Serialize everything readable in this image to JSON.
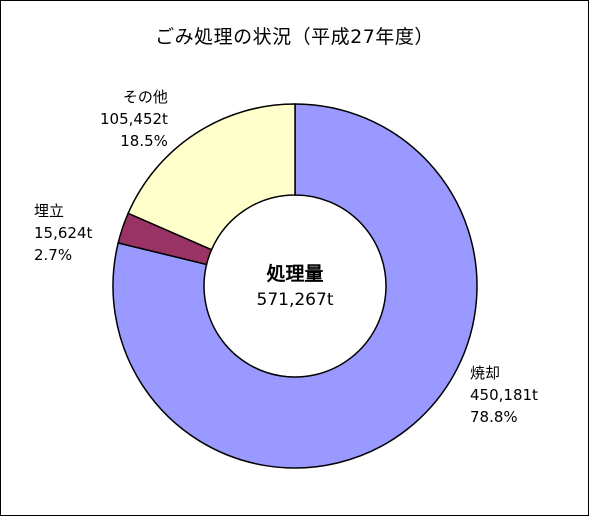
{
  "chart_data": {
    "type": "pie",
    "donut": true,
    "title": "ごみ処理の状況（平成27年度）",
    "center_label": "処理量",
    "center_value": "571,267t",
    "slices": [
      {
        "name": "焼却",
        "amount": "450,181t",
        "percent_label": "78.8%",
        "value": 450181,
        "color": "#9999ff"
      },
      {
        "name": "埋立",
        "amount": "15,624t",
        "percent_label": "2.7%",
        "value": 15624,
        "color": "#993366"
      },
      {
        "name": "その他",
        "amount": "105,452t",
        "percent_label": "18.5%",
        "value": 105452,
        "color": "#ffffcc"
      }
    ]
  }
}
